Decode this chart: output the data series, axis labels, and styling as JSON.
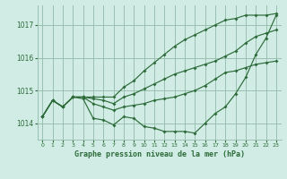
{
  "bg_color": "#d0ece4",
  "grid_color": "#9bbfb0",
  "line_color": "#2d6b3a",
  "xlabel": "Graphe pression niveau de la mer (hPa)",
  "xlim": [
    -0.5,
    23.5
  ],
  "ylim": [
    1013.5,
    1017.6
  ],
  "yticks": [
    1014,
    1015,
    1016,
    1017
  ],
  "xticks": [
    0,
    1,
    2,
    3,
    4,
    5,
    6,
    7,
    8,
    9,
    10,
    11,
    12,
    13,
    14,
    15,
    16,
    17,
    18,
    19,
    20,
    21,
    22,
    23
  ],
  "series": [
    [
      1014.2,
      1014.7,
      1014.5,
      1014.8,
      1014.8,
      1014.8,
      1014.8,
      1014.8,
      1015.1,
      1015.3,
      1015.6,
      1015.85,
      1016.1,
      1016.35,
      1016.55,
      1016.7,
      1016.85,
      1017.0,
      1017.15,
      1017.2,
      1017.3,
      1017.3,
      1017.3,
      1017.35
    ],
    [
      1014.2,
      1014.7,
      1014.5,
      1014.8,
      1014.8,
      1014.75,
      1014.7,
      1014.6,
      1014.8,
      1014.9,
      1015.05,
      1015.2,
      1015.35,
      1015.5,
      1015.6,
      1015.7,
      1015.8,
      1015.9,
      1016.05,
      1016.2,
      1016.45,
      1016.65,
      1016.75,
      1016.85
    ],
    [
      1014.2,
      1014.7,
      1014.5,
      1014.8,
      1014.8,
      1014.6,
      1014.5,
      1014.4,
      1014.5,
      1014.55,
      1014.6,
      1014.7,
      1014.75,
      1014.8,
      1014.9,
      1015.0,
      1015.15,
      1015.35,
      1015.55,
      1015.6,
      1015.7,
      1015.8,
      1015.85,
      1015.9
    ],
    [
      1014.2,
      1014.7,
      1014.5,
      1014.8,
      1014.75,
      1014.15,
      1014.1,
      1013.95,
      1014.2,
      1014.15,
      1013.9,
      1013.85,
      1013.75,
      1013.75,
      1013.75,
      1013.7,
      1014.0,
      1014.3,
      1014.5,
      1014.9,
      1015.4,
      1016.1,
      1016.6,
      1017.3
    ]
  ]
}
